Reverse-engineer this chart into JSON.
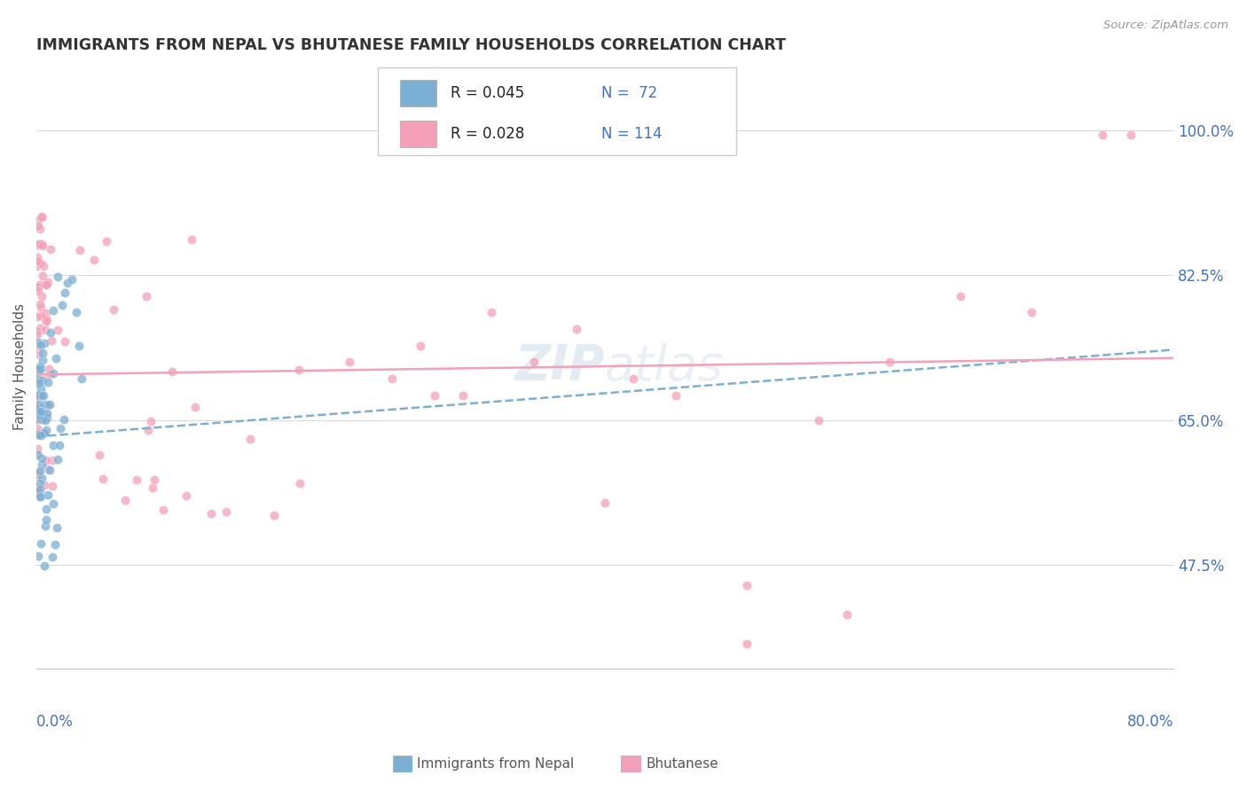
{
  "title": "IMMIGRANTS FROM NEPAL VS BHUTANESE FAMILY HOUSEHOLDS CORRELATION CHART",
  "source": "Source: ZipAtlas.com",
  "ylabel": "Family Households",
  "y_ticks": [
    47.5,
    65.0,
    82.5,
    100.0
  ],
  "x_min": 0.0,
  "x_max": 80.0,
  "y_min": 35.0,
  "y_max": 108.0,
  "legend_r1": "0.045",
  "legend_n1": "72",
  "legend_r2": "0.028",
  "legend_n2": "114",
  "blue_color": "#7bafd4",
  "pink_color": "#f4a0b8",
  "label1": "Immigrants from Nepal",
  "label2": "Bhutanese",
  "title_color": "#333333",
  "axis_label_color": "#4472c4",
  "blue_trend_start_y": 63.0,
  "blue_trend_end_y": 73.5,
  "pink_trend_start_y": 70.5,
  "pink_trend_end_y": 72.5
}
